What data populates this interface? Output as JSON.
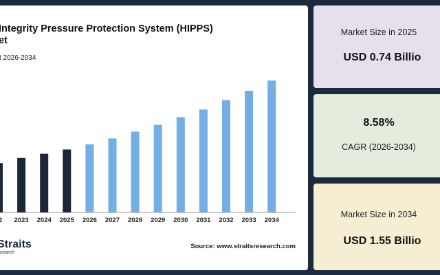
{
  "chart_data": {
    "type": "bar",
    "title_line1": "Integrity Pressure Protection System (HIPPS)",
    "title_line2": "et",
    "subtitle": "t 2026-2034",
    "categories": [
      "22",
      "2023",
      "2024",
      "2025",
      "2026",
      "2027",
      "2028",
      "2029",
      "2030",
      "2031",
      "2032",
      "2033",
      "2034"
    ],
    "values": [
      0.58,
      0.64,
      0.69,
      0.74,
      0.8,
      0.87,
      0.95,
      1.03,
      1.12,
      1.21,
      1.32,
      1.43,
      1.55
    ],
    "historical_color": "#1c2639",
    "forecast_color": "#73aee4",
    "historical_count": 4,
    "ylim": [
      0,
      1.6
    ],
    "grid": false,
    "legend": "none"
  },
  "source": "Source: www.straitsresearch.com",
  "logo": {
    "main": "Straits",
    "sub": "esearch"
  },
  "cards": [
    {
      "label": "Market Size in 2025",
      "value": "USD 0.74 Billio"
    },
    {
      "label": "CAGR (2026-2034)",
      "value": "8.58%"
    },
    {
      "label": "Market Size in 2034",
      "value": "USD 1.55 Billio"
    }
  ]
}
